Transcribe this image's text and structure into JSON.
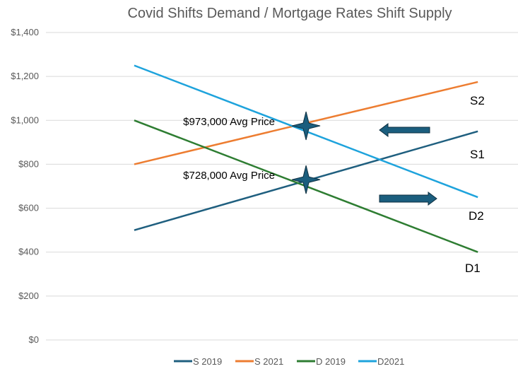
{
  "chart_data": {
    "type": "line",
    "title": "Covid Shifts Demand / Mortgage Rates Shift Supply",
    "xlabel": "",
    "ylabel": "",
    "x": [
      0,
      1
    ],
    "xlim": [
      -0.257,
      1.121
    ],
    "ylim": [
      0,
      1400
    ],
    "yticks": [
      0,
      200,
      400,
      600,
      800,
      1000,
      1200,
      1400
    ],
    "ytick_labels": [
      "$0",
      "$200",
      "$400",
      "$600",
      "$800",
      "$1,000",
      "$1,200",
      "$1,400"
    ],
    "grid": true,
    "legend_position": "bottom",
    "series": [
      {
        "name": "S 2019",
        "values": [
          500,
          950
        ],
        "color": "#1f5f7f",
        "end_label": "S1"
      },
      {
        "name": "S 2021",
        "values": [
          800,
          1175
        ],
        "color": "#ed7d31",
        "end_label": "S2"
      },
      {
        "name": "D 2019",
        "values": [
          1000,
          400
        ],
        "color": "#2e7d32",
        "end_label": "D1"
      },
      {
        "name": "D2021",
        "values": [
          1250,
          650
        ],
        "color": "#1ea3dc",
        "end_label": "D2"
      }
    ],
    "annotations": [
      {
        "text": "$973,000 Avg Price",
        "x": 0.5,
        "y": 975
      },
      {
        "text": "$728,000 Avg Price",
        "x": 0.5,
        "y": 730
      }
    ],
    "arrows": [
      {
        "direction": "left",
        "y": 975
      },
      {
        "direction": "right",
        "y": 650
      }
    ]
  }
}
